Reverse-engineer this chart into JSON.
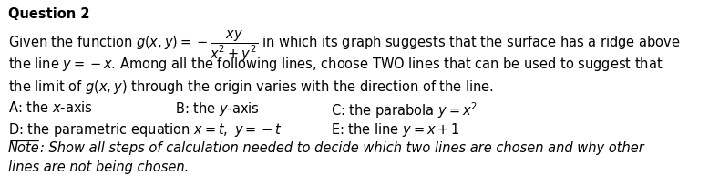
{
  "title": "Question 2",
  "line1": "Given the function $g(x, y) = -\\dfrac{xy}{x^2+y^2}$ in which its graph suggests that the surface has a ridge above",
  "line2": "the line $y = -x$. Among all the following lines, choose TWO lines that can be used to suggest that",
  "line3": "the limit of $g(x, y)$ through the origin varies with the direction of the line.",
  "optA": "A: the $x$-axis",
  "optB": "B: the $y$-axis",
  "optC": "C: the parabola $y = x^2$",
  "optD": "D: the parametric equation $x = t,\\ y = -t$",
  "optE": "E: the line $y = x + 1$",
  "note_label": "Note",
  "note_text": ": Show all steps of calculation needed to decide which two lines are chosen and why other",
  "note_text2": "lines are not being chosen.",
  "bg_color": "#ffffff",
  "text_color": "#000000",
  "font_size": 10.5
}
